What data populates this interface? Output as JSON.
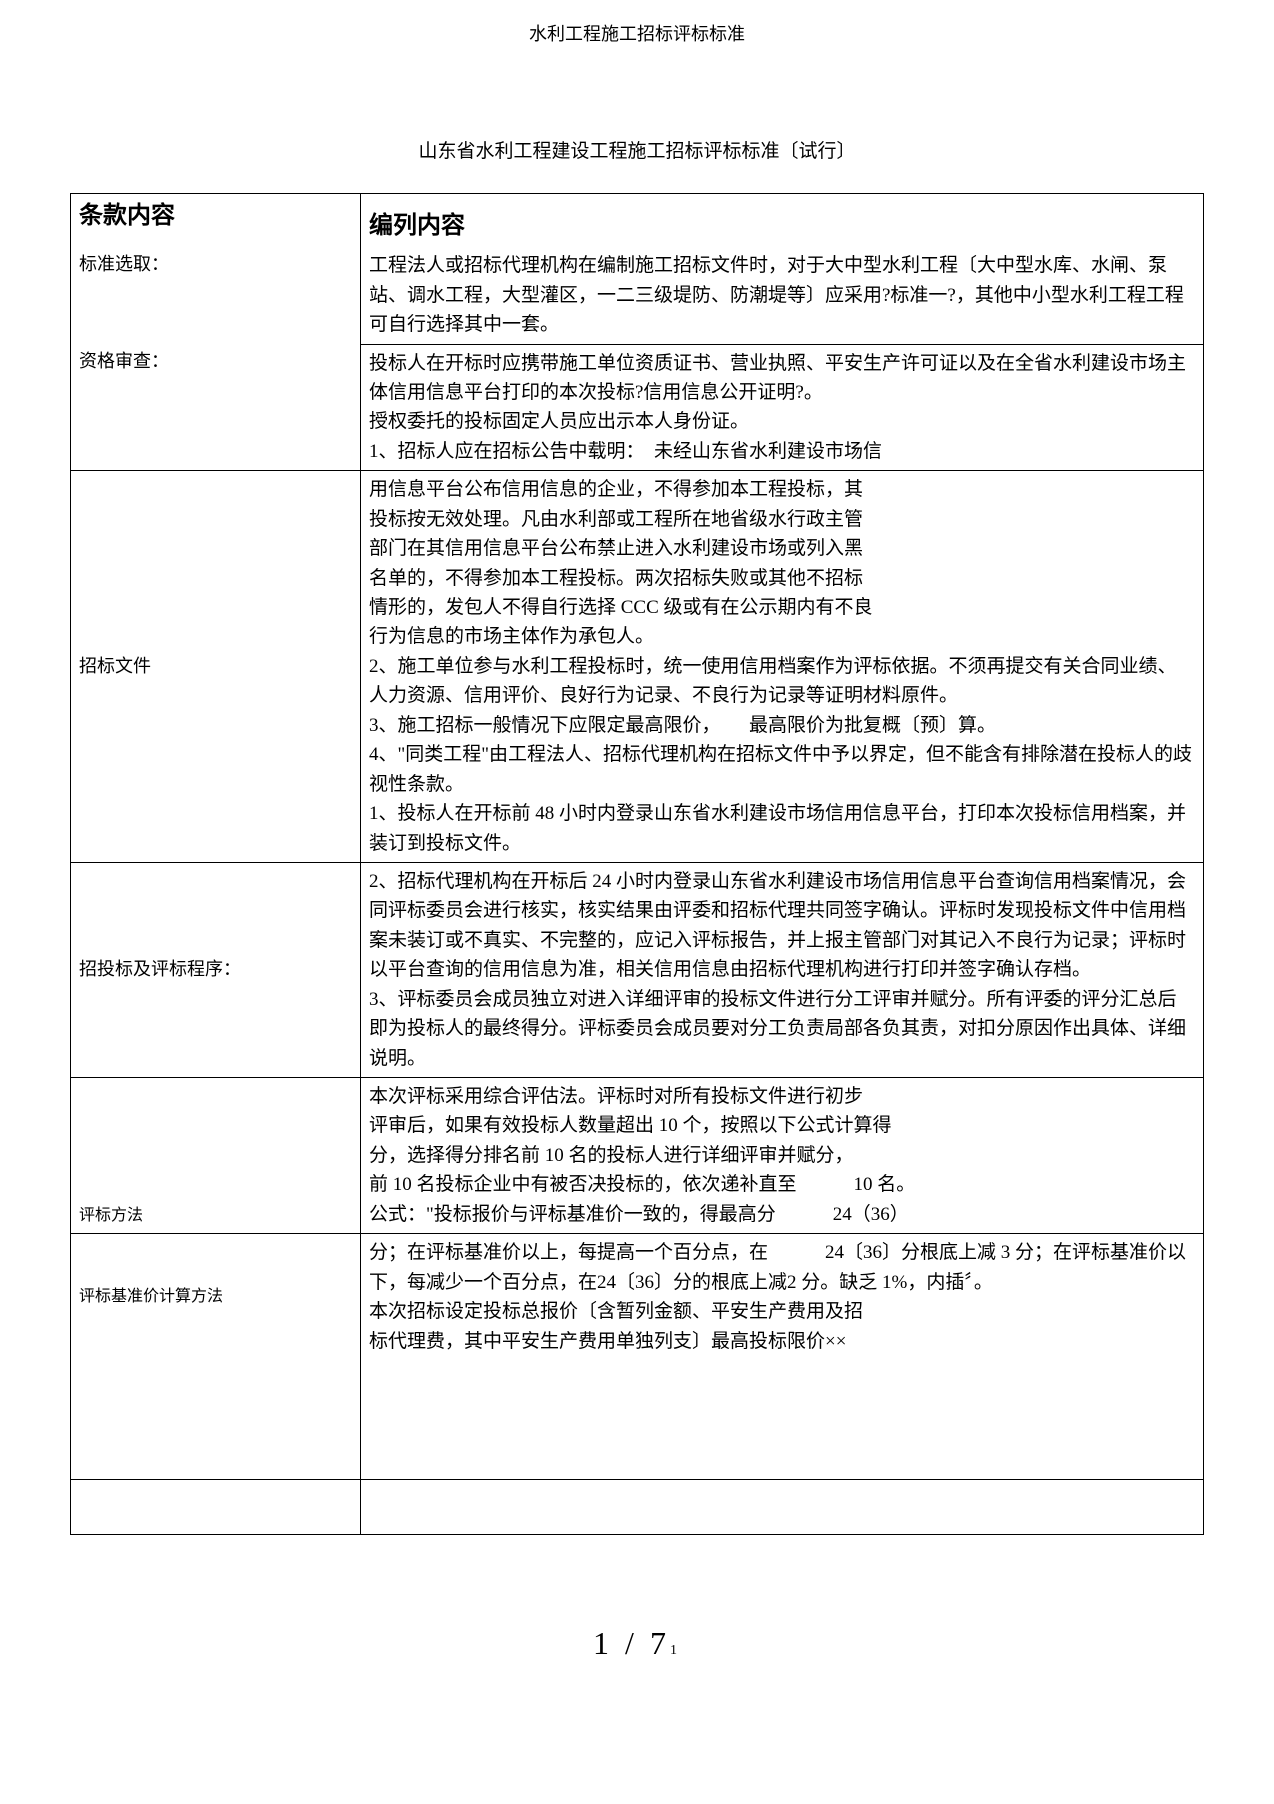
{
  "header": "水利工程施工招标评标标准",
  "title": "山东省水利工程建设工程施工招标评标标准〔试行〕",
  "table": {
    "head_left": "条款内容",
    "head_right": "编列内容",
    "rows": [
      {
        "label": "标准选取：",
        "content": "工程法人或招标代理机构在编制施工招标文件时，对于大中型水利工程〔大中型水库、水闸、泵站、调水工程，大型灌区，一二三级堤防、防潮堤等〕应采用?标准一?，其他中小型水利工程工程可自行选择其中一套。"
      },
      {
        "label": "资格审查：",
        "content": "投标人在开标时应携带施工单位资质证书、营业执照、平安生产许可证以及在全省水利建设市场主体信用信息平台打印的本次投标?信用信息公开证明?。\n授权委托的投标固定人员应出示本人身份证。\n1、招标人应在招标公告中载明：　未经山东省水利建设市场信"
      },
      {
        "label": "招标文件",
        "content": "用信息平台公布信用信息的企业，不得参加本工程投标，其\n投标按无效处理。凡由水利部或工程所在地省级水行政主管\n部门在其信用信息平台公布禁止进入水利建设市场或列入黑\n名单的，不得参加本工程投标。两次招标失败或其他不招标\n情形的，发包人不得自行选择 CCC 级或有在公示期内有不良\n行为信息的市场主体作为承包人。\n2、施工单位参与水利工程投标时，统一使用信用档案作为评标依据。不须再提交有关合同业绩、人力资源、信用评价、良好行为记录、不良行为记录等证明材料原件。\n3、施工招标一般情况下应限定最高限价，　　最高限价为批复概〔预〕算。\n4、\"同类工程\"由工程法人、招标代理机构在招标文件中予以界定，但不能含有排除潜在投标人的歧视性条款。\n1、投标人在开标前 48 小时内登录山东省水利建设市场信用信息平台，打印本次投标信用档案，并装订到投标文件。"
      },
      {
        "label": "招投标及评标程序：",
        "content": "2、招标代理机构在开标后 24 小时内登录山东省水利建设市场信用信息平台查询信用档案情况，会同评标委员会进行核实，核实结果由评委和招标代理共同签字确认。评标时发现投标文件中信用档案未装订或不真实、不完整的，应记入评标报告，并上报主管部门对其记入不良行为记录；评标时以平台查询的信用信息为准，相关信用信息由招标代理机构进行打印并签字确认存档。\n3、评标委员会成员独立对进入详细评审的投标文件进行分工评审并赋分。所有评委的评分汇总后即为投标人的最终得分。评标委员会成员要对分工负责局部各负其责，对扣分原因作出具体、详细说明。"
      },
      {
        "label": "评标方法",
        "content": "本次评标采用综合评估法。评标时对所有投标文件进行初步\n评审后，如果有效投标人数量超出 10 个，按照以下公式计算得\n分，选择得分排名前 10 名的投标人进行详细评审并赋分，\n前 10 名投标企业中有被否决投标的，依次递补直至　　　10 名。\n公式：\"投标报价与评标基准价一致的，得最高分　　　24（36）"
      },
      {
        "label": "评标基准价计算方法",
        "content": "分；在评标基准价以上，每提高一个百分点，在　　　24〔36〕分根底上减 3 分；在评标基准价以下，每减少一个百分点，在24〔36〕分的根底上减2 分。缺乏 1%，内插〞。\n本次招标设定投标总报价〔含暂列金额、平安生产费用及招\n标代理费，其中平安生产费用单独列支〕最高投标限价××"
      }
    ]
  },
  "page_num": "1  /  7",
  "page_sub": "1"
}
